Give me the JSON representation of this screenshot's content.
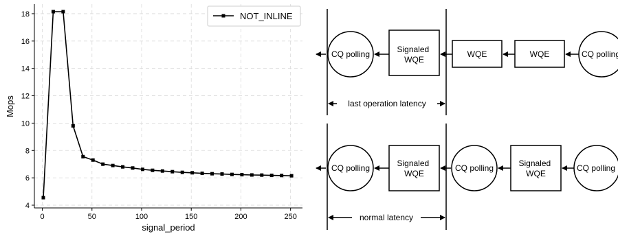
{
  "chart_data": {
    "type": "line",
    "xlabel": "signal_period",
    "ylabel": "Mops",
    "xlim": [
      -8,
      262
    ],
    "ylim": [
      3.8,
      18.7
    ],
    "x_ticks": [
      0,
      50,
      100,
      150,
      200,
      250
    ],
    "y_ticks": [
      4,
      6,
      8,
      10,
      12,
      14,
      16,
      18
    ],
    "grid": true,
    "legend_position": "top-right",
    "series": [
      {
        "name": "NOT_INLINE",
        "color": "#000000",
        "marker": "square",
        "x": [
          1,
          11,
          21,
          31,
          41,
          51,
          61,
          71,
          81,
          91,
          101,
          111,
          121,
          131,
          141,
          151,
          161,
          171,
          181,
          191,
          201,
          211,
          221,
          231,
          241,
          251
        ],
        "y": [
          4.55,
          18.15,
          18.15,
          9.8,
          7.55,
          7.3,
          7.0,
          6.9,
          6.8,
          6.72,
          6.62,
          6.55,
          6.5,
          6.45,
          6.4,
          6.37,
          6.33,
          6.3,
          6.28,
          6.25,
          6.23,
          6.21,
          6.2,
          6.18,
          6.17,
          6.15
        ]
      }
    ]
  },
  "diagram": {
    "top": {
      "nodes": [
        "CQ polling",
        "Signaled WQE",
        "WQE",
        "WQE",
        "CQ polling"
      ],
      "span_label": "last operation latency"
    },
    "bottom": {
      "nodes": [
        "CQ polling",
        "Signaled WQE",
        "CQ polling",
        "Signaled WQE",
        "CQ polling"
      ],
      "span_label": "normal latency"
    }
  }
}
